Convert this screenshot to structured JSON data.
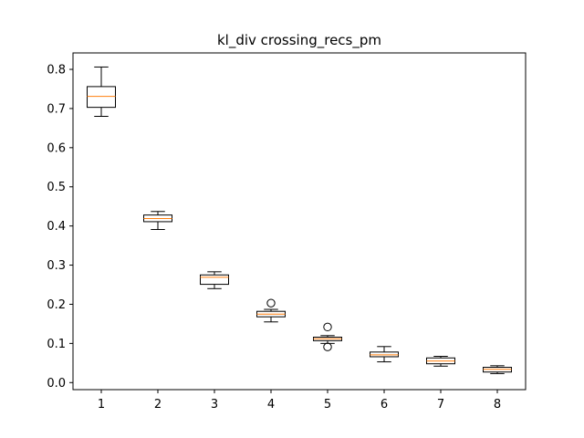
{
  "chart_data": {
    "type": "box",
    "title": "kl_div crossing_recs_pm",
    "xlabel": "",
    "ylabel": "",
    "categories": [
      "1",
      "2",
      "3",
      "4",
      "5",
      "6",
      "7",
      "8"
    ],
    "yticks": [
      "0.0",
      "0.1",
      "0.2",
      "0.3",
      "0.4",
      "0.5",
      "0.6",
      "0.7",
      "0.8"
    ],
    "ylim": [
      -0.018,
      0.842
    ],
    "xlim": [
      0.5,
      8.5
    ],
    "grid": false,
    "colors": {
      "box": "#000000",
      "median": "#ff7f0e",
      "background": "#ffffff"
    },
    "boxes": [
      {
        "label": "1",
        "whisker_low": 0.68,
        "q1": 0.703,
        "median": 0.731,
        "q3": 0.756,
        "whisker_high": 0.806,
        "outliers": []
      },
      {
        "label": "2",
        "whisker_low": 0.391,
        "q1": 0.411,
        "median": 0.419,
        "q3": 0.428,
        "whisker_high": 0.437,
        "outliers": []
      },
      {
        "label": "3",
        "whisker_low": 0.24,
        "q1": 0.251,
        "median": 0.269,
        "q3": 0.275,
        "whisker_high": 0.283,
        "outliers": []
      },
      {
        "label": "4",
        "whisker_low": 0.155,
        "q1": 0.168,
        "median": 0.175,
        "q3": 0.182,
        "whisker_high": 0.187,
        "outliers": [
          0.203
        ]
      },
      {
        "label": "5",
        "whisker_low": 0.1,
        "q1": 0.107,
        "median": 0.112,
        "q3": 0.116,
        "whisker_high": 0.12,
        "outliers": [
          0.142,
          0.091
        ]
      },
      {
        "label": "6",
        "whisker_low": 0.053,
        "q1": 0.066,
        "median": 0.071,
        "q3": 0.078,
        "whisker_high": 0.092,
        "outliers": []
      },
      {
        "label": "7",
        "whisker_low": 0.042,
        "q1": 0.048,
        "median": 0.055,
        "q3": 0.063,
        "whisker_high": 0.067,
        "outliers": []
      },
      {
        "label": "8",
        "whisker_low": 0.023,
        "q1": 0.027,
        "median": 0.034,
        "q3": 0.039,
        "whisker_high": 0.043,
        "outliers": []
      }
    ]
  }
}
